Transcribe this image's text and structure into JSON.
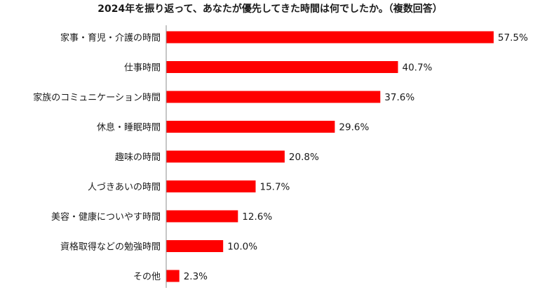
{
  "chart_data": {
    "type": "bar",
    "orientation": "horizontal",
    "title": "2024年を振り返って、あなたが優先してきた時間は何でしたか。（複数回答）",
    "categories": [
      "家事・育児・介護の時間",
      "仕事時間",
      "家族のコミュニケーション時間",
      "休息・睡眠時間",
      "趣味の時間",
      "人づきあいの時間",
      "美容・健康についやす時間",
      "資格取得などの勉強時間",
      "その他"
    ],
    "values": [
      57.5,
      40.7,
      37.6,
      29.6,
      20.8,
      15.7,
      12.6,
      10.0,
      2.3
    ],
    "value_labels": [
      "57.5%",
      "40.7%",
      "37.6%",
      "29.6%",
      "20.8%",
      "15.7%",
      "12.6%",
      "10.0%",
      "2.3%"
    ],
    "unit": "%",
    "xlim": [
      0,
      60
    ],
    "grid": false,
    "legend": "none",
    "colors": {
      "bar": "#ff0000",
      "axis": "#8c8c8c",
      "text": "#1a1a1a"
    }
  }
}
